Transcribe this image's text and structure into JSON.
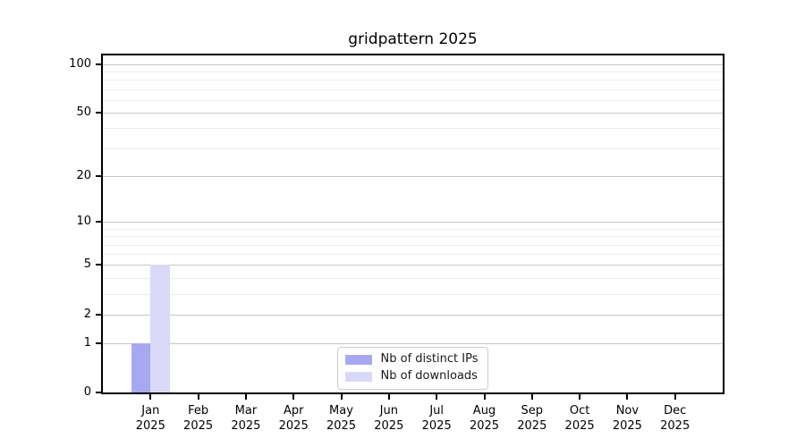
{
  "title": "gridpattern 2025",
  "legend": {
    "items": [
      {
        "label": "Nb of distinct IPs",
        "color": "#a8a8f2"
      },
      {
        "label": "Nb of downloads",
        "color": "#d9d9f7"
      }
    ],
    "position": "lower center"
  },
  "chart_data": {
    "type": "bar",
    "title": "gridpattern 2025",
    "categories": [
      "Jan",
      "Feb",
      "Mar",
      "Apr",
      "May",
      "Jun",
      "Jul",
      "Aug",
      "Sep",
      "Oct",
      "Nov",
      "Dec"
    ],
    "year_label": "2025",
    "series": [
      {
        "name": "Nb of distinct IPs",
        "color": "#a8a8f2",
        "values": [
          1,
          0,
          0,
          0,
          0,
          0,
          0,
          0,
          0,
          0,
          0,
          0
        ]
      },
      {
        "name": "Nb of downloads",
        "color": "#d9d9f7",
        "values": [
          5,
          0,
          0,
          0,
          0,
          0,
          0,
          0,
          0,
          0,
          0,
          0
        ]
      }
    ],
    "yscale": "log10(1+y)",
    "y_major_ticks": [
      0,
      1,
      2,
      5,
      10,
      20,
      50,
      100
    ],
    "y_minor_gridlines": [
      3,
      4,
      6,
      7,
      8,
      9,
      30,
      40,
      60,
      70,
      80,
      90
    ],
    "ylim": [
      0,
      113
    ],
    "grid": "horizontal",
    "legend_position": "lower center"
  },
  "colors": {
    "axis": "#000000",
    "major_grid": "#c6c6c6",
    "minor_grid": "#ececec",
    "background": "#ffffff",
    "text": "#000000"
  }
}
